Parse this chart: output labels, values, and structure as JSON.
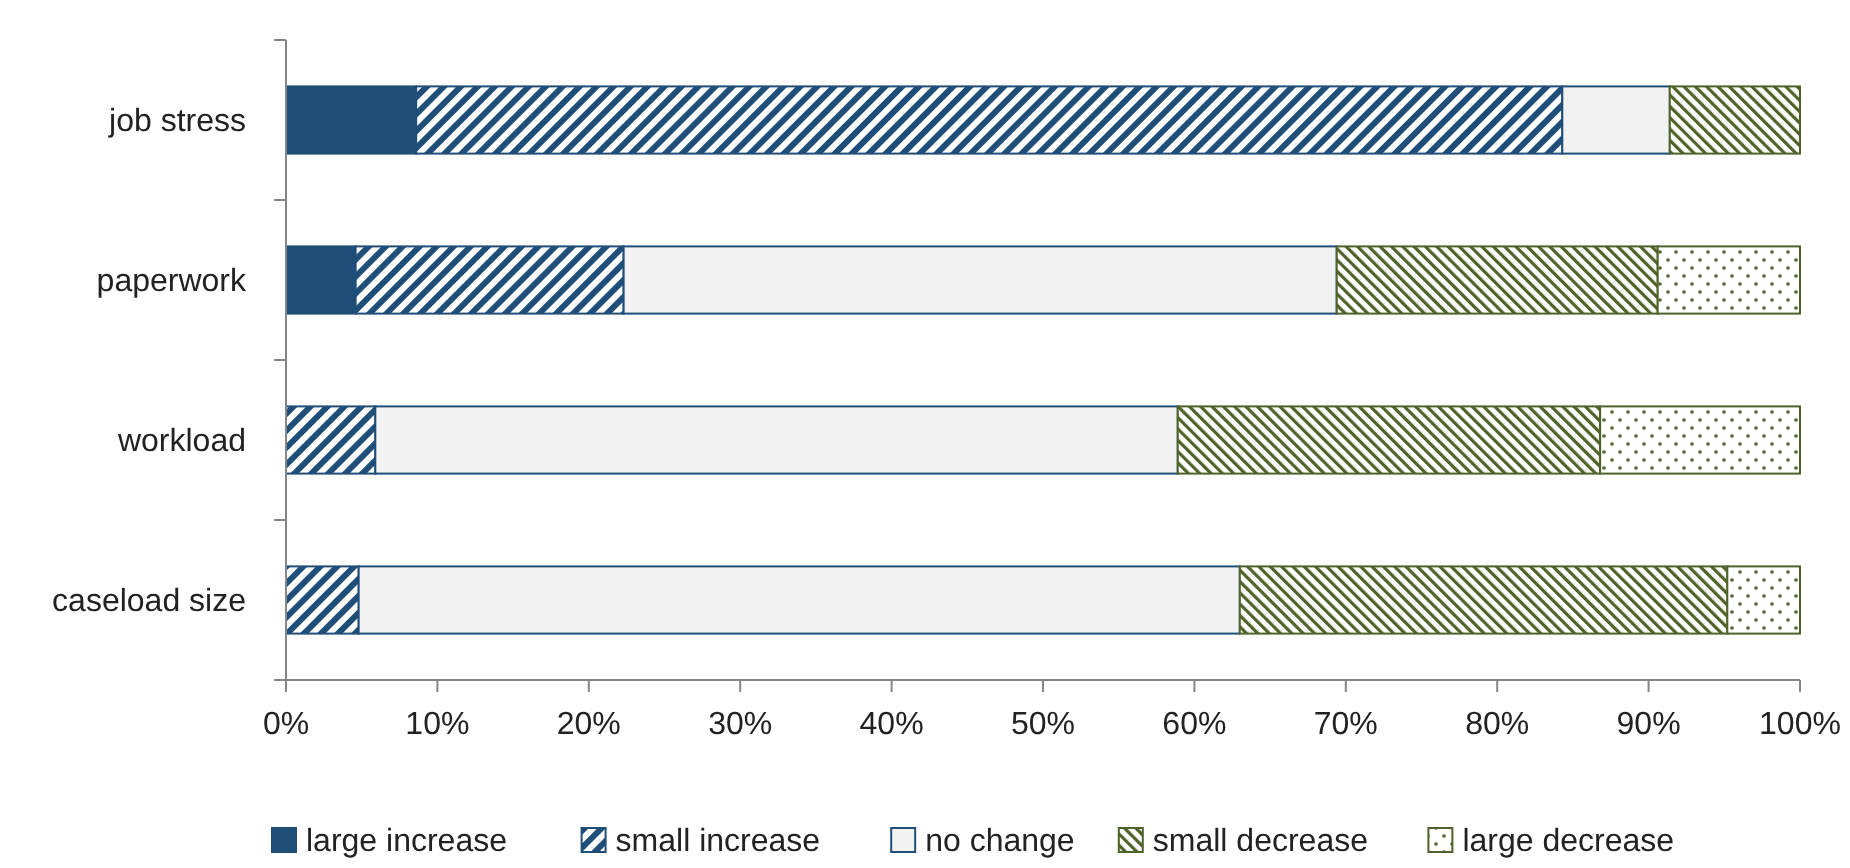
{
  "chart_data": {
    "type": "bar",
    "orientation": "horizontal",
    "stacked": true,
    "categories": [
      "job stress",
      "paperwork",
      "workload",
      "caseload size"
    ],
    "series": [
      {
        "name": "large increase",
        "color": "#1f4e79",
        "values": [
          8.6,
          4.6,
          0,
          0
        ]
      },
      {
        "name": "small increase",
        "color": "#1f4e79",
        "values": [
          75.7,
          17.7,
          5.9,
          4.8
        ]
      },
      {
        "name": "no change",
        "color": "#f2f2f2",
        "values": [
          7.1,
          47.1,
          53,
          58.2
        ]
      },
      {
        "name": "small decrease",
        "color": "#4f6228",
        "values": [
          8.6,
          21.2,
          27.9,
          32.2
        ]
      },
      {
        "name": "large decrease",
        "color": "#4f6228",
        "values": [
          0,
          9.4,
          13.2,
          4.8
        ]
      }
    ],
    "xlim": [
      0,
      100
    ],
    "xticks": [
      {
        "value": 0,
        "label": "0%"
      },
      {
        "value": 10,
        "label": "10%"
      },
      {
        "value": 20,
        "label": "20%"
      },
      {
        "value": 30,
        "label": "30%"
      },
      {
        "value": 40,
        "label": "40%"
      },
      {
        "value": 50,
        "label": "50%"
      },
      {
        "value": 60,
        "label": "60%"
      },
      {
        "value": 70,
        "label": "70%"
      },
      {
        "value": 80,
        "label": "80%"
      },
      {
        "value": 90,
        "label": "90%"
      },
      {
        "value": 100,
        "label": "100%"
      }
    ],
    "legend": "bottom"
  }
}
